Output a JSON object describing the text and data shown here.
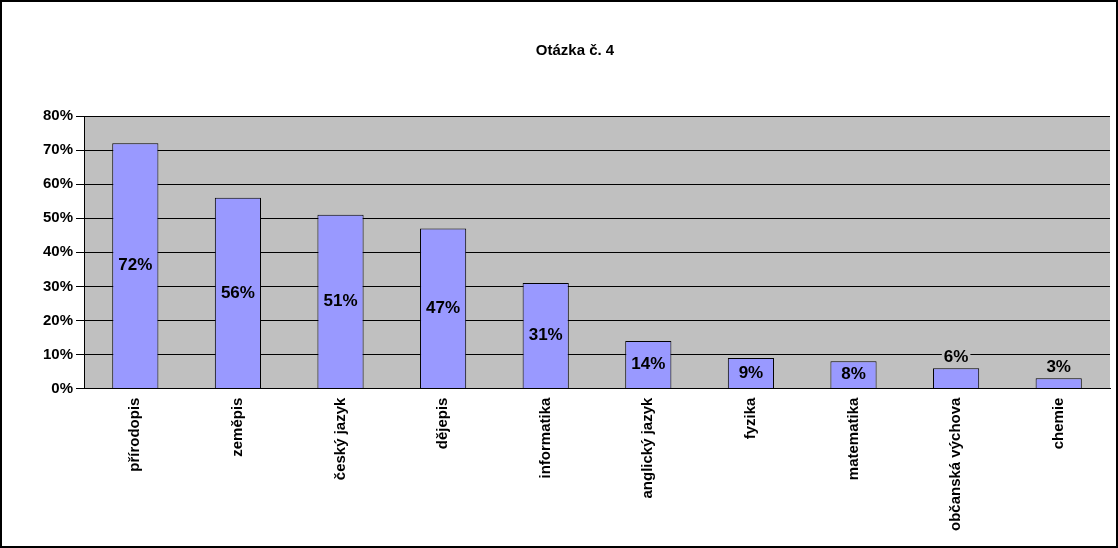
{
  "chart_data": {
    "type": "bar",
    "title": "Otázka č. 4",
    "categories": [
      "přírodopis",
      "zeměpis",
      "český jazyk",
      "dějepis",
      "informatika",
      "anglický jazyk",
      "fyzika",
      "matematika",
      "občanská výchova",
      "chemie"
    ],
    "values": [
      72,
      56,
      51,
      47,
      31,
      14,
      9,
      8,
      6,
      3
    ],
    "value_labels": [
      "72%",
      "56%",
      "51%",
      "47%",
      "31%",
      "14%",
      "9%",
      "8%",
      "6%",
      "3%"
    ],
    "color": "#9999ff",
    "ylim": [
      0,
      80
    ],
    "yticks": [
      {
        "value": 0,
        "label": "0%"
      },
      {
        "value": 10,
        "label": "10%"
      },
      {
        "value": 20,
        "label": "20%"
      },
      {
        "value": 30,
        "label": "30%"
      },
      {
        "value": 40,
        "label": "40%"
      },
      {
        "value": 50,
        "label": "50%"
      },
      {
        "value": 60,
        "label": "60%"
      },
      {
        "value": 70,
        "label": "70%"
      },
      {
        "value": 80,
        "label": "80%"
      }
    ],
    "grid": "y",
    "legend": false
  }
}
